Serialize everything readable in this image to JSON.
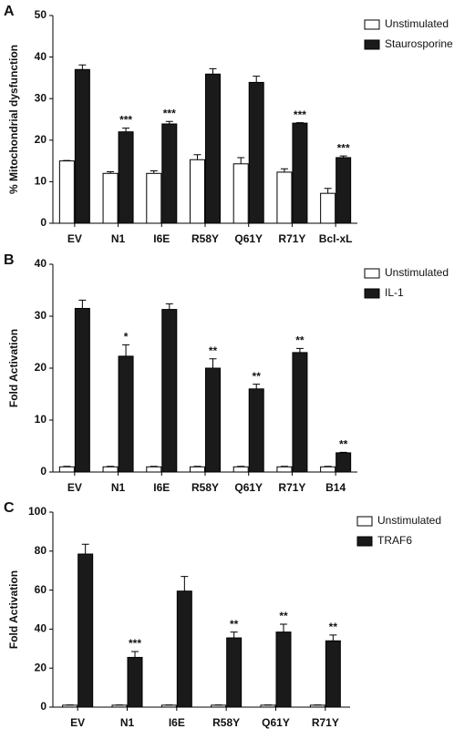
{
  "chart_data": [
    {
      "type": "bar",
      "panel_label": "A",
      "ylabel": "% Mitochondrial dysfunction",
      "categories": [
        "EV",
        "N1",
        "I6E",
        "R58Y",
        "Q61Y",
        "R71Y",
        "Bcl-xL"
      ],
      "ylim": [
        0,
        50
      ],
      "yticks": [
        0,
        10,
        20,
        30,
        40,
        50
      ],
      "series": [
        {
          "name": "Unstimulated",
          "color": "#ffffff",
          "values": [
            15,
            12,
            12,
            15.3,
            14.3,
            12.3,
            7.2
          ],
          "errors": [
            0.1,
            0.4,
            0.6,
            1.2,
            1.5,
            0.8,
            1.2
          ]
        },
        {
          "name": "Staurosporine",
          "color": "#1a1a1a",
          "values": [
            37,
            22,
            23.9,
            35.9,
            33.9,
            24.1,
            15.8
          ],
          "errors": [
            1.1,
            0.9,
            0.6,
            1.3,
            1.5,
            0.1,
            0.4
          ],
          "significance": [
            null,
            "***",
            "***",
            null,
            null,
            "***",
            "***"
          ]
        }
      ]
    },
    {
      "type": "bar",
      "panel_label": "B",
      "ylabel": "Fold Activation",
      "categories": [
        "EV",
        "N1",
        "I6E",
        "R58Y",
        "Q61Y",
        "R71Y",
        "B14"
      ],
      "ylim": [
        0,
        40
      ],
      "yticks": [
        0,
        10,
        20,
        30,
        40
      ],
      "series": [
        {
          "name": "Unstimulated",
          "color": "#ffffff",
          "values": [
            1,
            1,
            1,
            1,
            1,
            1,
            1
          ],
          "errors": [
            0.1,
            0.1,
            0.1,
            0.1,
            0.1,
            0.1,
            0.1
          ]
        },
        {
          "name": "IL-1",
          "color": "#1a1a1a",
          "values": [
            31.5,
            22.3,
            31.3,
            20,
            16,
            23,
            3.7
          ],
          "errors": [
            1.6,
            2.2,
            1.1,
            1.8,
            0.9,
            0.8,
            0.1
          ],
          "significance": [
            null,
            "*",
            null,
            "**",
            "**",
            "**",
            "**"
          ]
        }
      ]
    },
    {
      "type": "bar",
      "panel_label": "C",
      "ylabel": "Fold Activation",
      "categories": [
        "EV",
        "N1",
        "I6E",
        "R58Y",
        "Q61Y",
        "R71Y"
      ],
      "ylim": [
        0,
        100
      ],
      "yticks": [
        0,
        20,
        40,
        60,
        80,
        100
      ],
      "series": [
        {
          "name": "Unstimulated",
          "color": "#ffffff",
          "values": [
            1,
            1,
            1,
            1,
            1,
            1
          ],
          "errors": [
            0.1,
            0.1,
            0.1,
            0.1,
            0.1,
            0.1
          ]
        },
        {
          "name": "TRAF6",
          "color": "#1a1a1a",
          "values": [
            78.5,
            25.5,
            59.5,
            35.5,
            38.5,
            34
          ],
          "errors": [
            5,
            3,
            7.5,
            3,
            4,
            3
          ],
          "significance": [
            null,
            "***",
            null,
            "**",
            "**",
            "**"
          ]
        }
      ]
    }
  ]
}
